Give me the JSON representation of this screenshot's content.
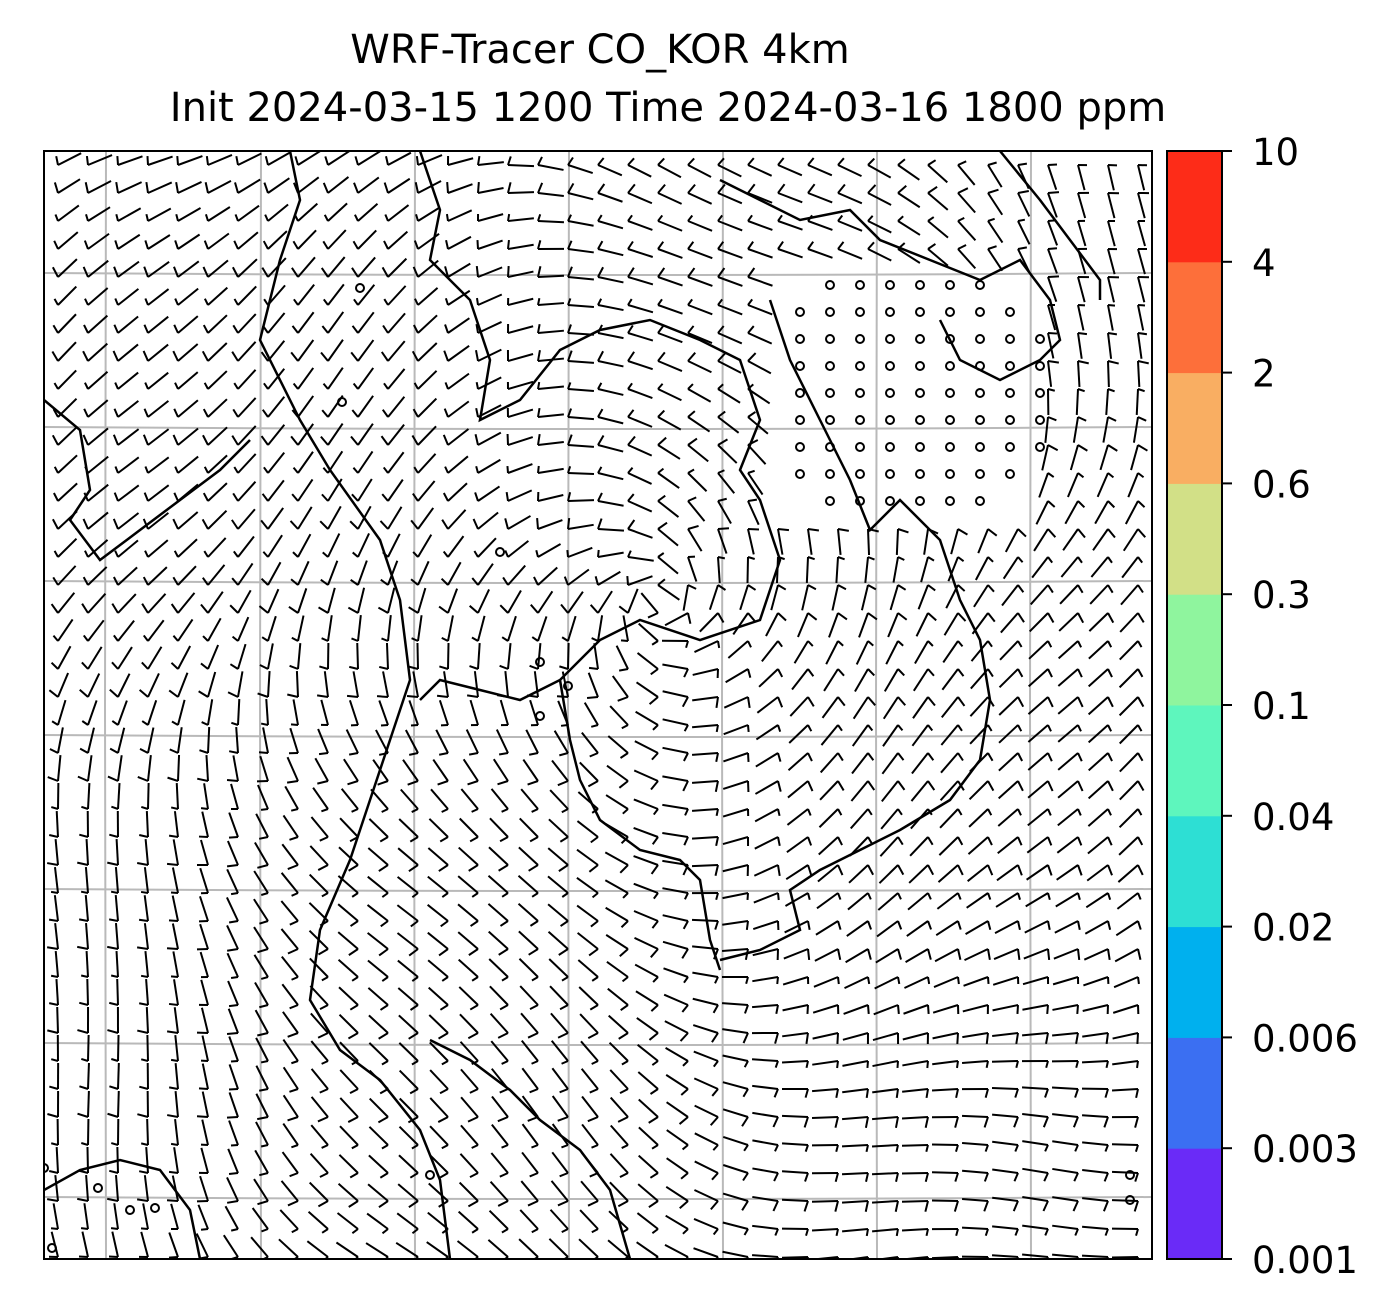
{
  "chart_data": {
    "type": "heatmap",
    "title": "WRF-Tracer CO_KOR 4km",
    "subtitle": "Init 2024-03-15 1200 Time 2024-03-16 1800 ppm",
    "grid": true,
    "legend": "colorbar right",
    "colorbar": {
      "levels": [
        "0.001",
        "0.003",
        "0.006",
        "0.02",
        "0.04",
        "0.1",
        "0.3",
        "0.6",
        "2",
        "4",
        "10"
      ],
      "colors": [
        "#6a2bf7",
        "#3b6ff2",
        "#00b0ee",
        "#2ddfd4",
        "#5ef6bd",
        "#8ff59e",
        "#d2e087",
        "#f9ae62",
        "#fd6f3a",
        "#fd2c18"
      ]
    },
    "field_values": "none above 0.001 ppm",
    "overlays": [
      "wind barbs",
      "coastlines",
      "lat/lon gridlines"
    ]
  }
}
